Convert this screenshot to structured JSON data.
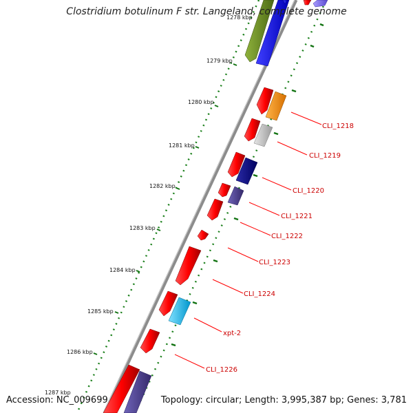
{
  "title": "Clostridium botulinum F str. Langeland, complete genome",
  "footer": {
    "accession": "Accession: NC_009699",
    "topology": "Topology: circular; Length: 3,995,387 bp; Genes: 3,781"
  },
  "ruler_labels": [
    "1278 kbp",
    "1279 kbp",
    "1280 kbp",
    "1281 kbp",
    "1282 kbp",
    "1283 kbp",
    "1284 kbp",
    "1285 kbp",
    "1286 kbp",
    "1287 kbp"
  ],
  "gene_labels": [
    "CLI_1218",
    "CLI_1219",
    "CLI_1220",
    "CLI_1221",
    "CLI_1222",
    "CLI_1223",
    "CLI_1224",
    "xpt-2",
    "CLI_1226"
  ],
  "colors": {
    "backbone": "#8c8c8c",
    "strand_forward": "#ff0000",
    "ruler_dots": "#1a7f1a",
    "ticks": "#127312",
    "label_line": "#ff0000",
    "label_text": "#cc0000",
    "olive": "#6b8e23",
    "blue": "#0000ff",
    "orange": "#ff8c00",
    "silver": "#c0c0c0",
    "navy": "#000080",
    "slate": "#483d8b",
    "sky": "#00bfff",
    "lavender": "#7b68ee"
  }
}
